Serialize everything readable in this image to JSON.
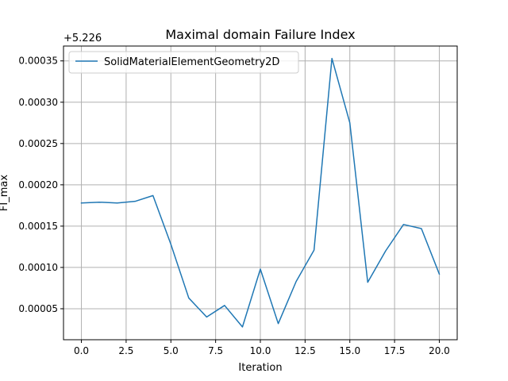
{
  "chart_data": {
    "type": "line",
    "title": "Maximal domain Failure Index",
    "xlabel": "Iteration",
    "ylabel": "FI_max",
    "offset_label": "+5.226",
    "xlim": [
      -1.0,
      21.0
    ],
    "ylim": [
      1.25e-05,
      0.000368
    ],
    "xticks": [
      0.0,
      2.5,
      5.0,
      7.5,
      10.0,
      12.5,
      15.0,
      17.5,
      20.0
    ],
    "xtick_labels": [
      "0.0",
      "2.5",
      "5.0",
      "7.5",
      "10.0",
      "12.5",
      "15.0",
      "17.5",
      "20.0"
    ],
    "yticks": [
      5e-05,
      0.0001,
      0.00015,
      0.0002,
      0.00025,
      0.0003,
      0.00035
    ],
    "ytick_labels": [
      "0.00005",
      "0.00010",
      "0.00015",
      "0.00020",
      "0.00025",
      "0.00030",
      "0.00035"
    ],
    "grid": true,
    "legend_position": "top-left",
    "series": [
      {
        "name": "SolidMaterialElementGeometry2D",
        "color": "#1f77b4",
        "x": [
          0,
          1,
          2,
          3,
          4,
          5,
          6,
          7,
          8,
          9,
          10,
          11,
          12,
          13,
          14,
          15,
          16,
          17,
          18,
          19,
          20
        ],
        "y": [
          0.000178,
          0.000179,
          0.000178,
          0.00018,
          0.000187,
          0.000128,
          6.3e-05,
          4e-05,
          5.4e-05,
          2.8e-05,
          9.8e-05,
          3.2e-05,
          8.3e-05,
          0.000121,
          0.000353,
          0.000275,
          8.2e-05,
          0.00012,
          0.000152,
          0.000147,
          9.2e-05
        ]
      }
    ]
  }
}
